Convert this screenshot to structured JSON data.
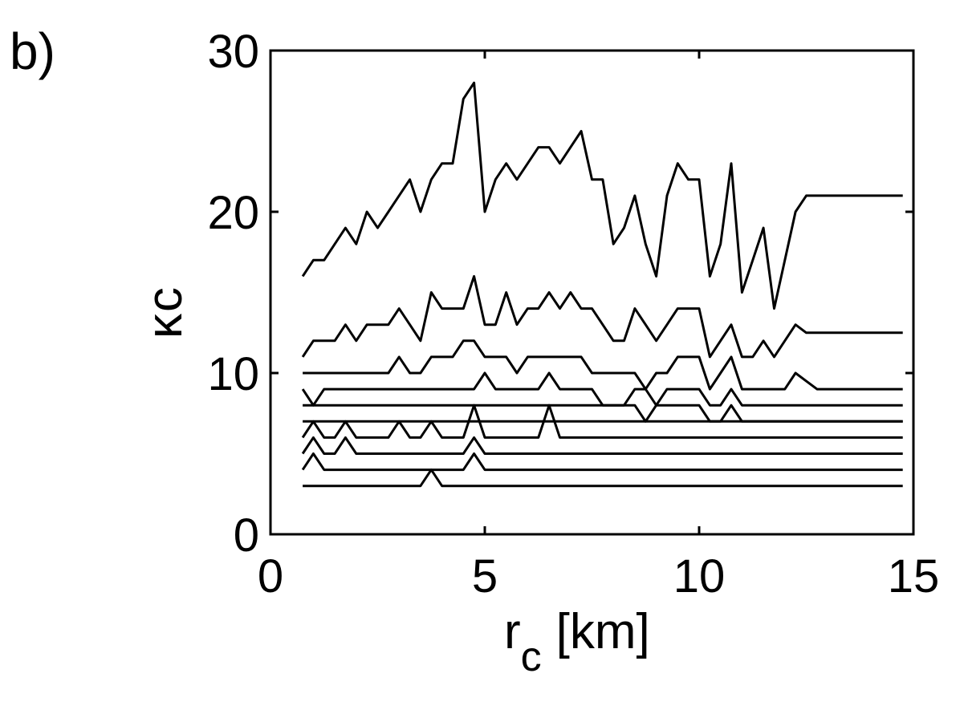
{
  "panel_label": "b)",
  "chart_data": {
    "type": "line",
    "title": "",
    "xlabel_main": "r",
    "xlabel_sub": "c",
    "xlabel_unit": "[km]",
    "ylabel_main": "κ",
    "ylabel_sub": "c",
    "xlim": [
      0,
      15
    ],
    "ylim": [
      0,
      30
    ],
    "xticks": [
      0,
      5,
      10,
      15
    ],
    "yticks": [
      0,
      10,
      20,
      30
    ],
    "grid": false,
    "line_color": "#000000",
    "x": [
      0.75,
      1.0,
      1.25,
      1.5,
      1.75,
      2.0,
      2.25,
      2.5,
      2.75,
      3.0,
      3.25,
      3.5,
      3.75,
      4.0,
      4.25,
      4.5,
      4.75,
      5.0,
      5.25,
      5.5,
      5.75,
      6.0,
      6.25,
      6.5,
      6.75,
      7.0,
      7.25,
      7.5,
      7.75,
      8.0,
      8.25,
      8.5,
      8.75,
      9.0,
      9.25,
      9.5,
      9.75,
      10.0,
      10.25,
      10.5,
      10.75,
      11.0,
      11.25,
      11.5,
      11.75,
      12.0,
      12.25,
      12.5,
      12.75,
      13.0,
      13.25,
      13.5,
      13.75,
      14.0,
      14.25,
      14.5,
      14.75
    ],
    "series": [
      {
        "values": [
          16,
          17,
          17,
          18,
          19,
          18,
          20,
          19,
          20,
          21,
          22,
          20,
          22,
          23,
          23,
          27,
          28,
          20,
          22,
          23,
          22,
          23,
          24,
          24,
          23,
          24,
          25,
          22,
          22,
          18,
          19,
          21,
          18,
          16,
          21,
          23,
          22,
          22,
          16,
          18,
          23,
          15,
          17,
          19,
          14,
          17,
          20,
          21,
          21,
          21,
          21,
          21,
          21,
          21,
          21,
          21,
          21
        ]
      },
      {
        "values": [
          11,
          12,
          12,
          12,
          13,
          12,
          13,
          13,
          13,
          14,
          13,
          12,
          15,
          14,
          14,
          14,
          16,
          13,
          13,
          15,
          13,
          14,
          14,
          15,
          14,
          15,
          14,
          14,
          13,
          12,
          12,
          14,
          13,
          12,
          13,
          14,
          14,
          14,
          11,
          12,
          13,
          11,
          11,
          12,
          11,
          12,
          13,
          12.5,
          12.5,
          12.5,
          12.5,
          12.5,
          12.5,
          12.5,
          12.5,
          12.5,
          12.5
        ]
      },
      {
        "values": [
          10,
          10,
          10,
          10,
          10,
          10,
          10,
          10,
          10,
          11,
          10,
          10,
          11,
          11,
          11,
          12,
          12,
          11,
          11,
          11,
          10,
          11,
          11,
          11,
          11,
          11,
          11,
          10,
          10,
          10,
          10,
          10,
          9,
          10,
          10,
          11,
          11,
          11,
          9,
          10,
          11,
          9,
          9,
          9,
          9,
          9,
          10,
          9.5,
          9,
          9,
          9,
          9,
          9,
          9,
          9,
          9,
          9
        ]
      },
      {
        "values": [
          9,
          8,
          9,
          9,
          9,
          9,
          9,
          9,
          9,
          9,
          9,
          9,
          9,
          9,
          9,
          9,
          9,
          10,
          9,
          9,
          9,
          9,
          9,
          10,
          9,
          9,
          9,
          9,
          8,
          8,
          8,
          9,
          9,
          8,
          9,
          9,
          9,
          9,
          8,
          8,
          9,
          8,
          8,
          8,
          8,
          8,
          8,
          8,
          8,
          8,
          8,
          8,
          8,
          8,
          8,
          8,
          8
        ]
      },
      {
        "values": [
          8,
          8,
          8,
          8,
          8,
          8,
          8,
          8,
          8,
          8,
          8,
          8,
          8,
          8,
          8,
          8,
          8,
          8,
          8,
          8,
          8,
          8,
          8,
          8,
          8,
          8,
          8,
          8,
          8,
          8,
          8,
          8,
          7,
          8,
          8,
          8,
          8,
          8,
          7,
          7,
          8,
          7,
          7,
          7,
          7,
          7,
          7,
          7,
          7,
          7,
          7,
          7,
          7,
          7,
          7,
          7,
          7
        ]
      },
      {
        "values": [
          7,
          7,
          7,
          7,
          7,
          7,
          7,
          7,
          7,
          7,
          7,
          7,
          7,
          7,
          7,
          7,
          7,
          7,
          7,
          7,
          7,
          7,
          7,
          7,
          7,
          7,
          7,
          7,
          7,
          7,
          7,
          7,
          7,
          7,
          7,
          7,
          7,
          7,
          7,
          7,
          7,
          7,
          7,
          7,
          7,
          7,
          7,
          7,
          7,
          7,
          7,
          7,
          7,
          7,
          7,
          7,
          7
        ]
      },
      {
        "values": [
          6,
          7,
          6,
          6,
          7,
          6,
          6,
          6,
          6,
          7,
          6,
          6,
          7,
          6,
          6,
          6,
          8,
          6,
          6,
          6,
          6,
          6,
          6,
          8,
          6,
          6,
          6,
          6,
          6,
          6,
          6,
          6,
          6,
          6,
          6,
          6,
          6,
          6,
          6,
          6,
          6,
          6,
          6,
          6,
          6,
          6,
          6,
          6,
          6,
          6,
          6,
          6,
          6,
          6,
          6,
          6,
          6
        ]
      },
      {
        "values": [
          5,
          6,
          5,
          5,
          6,
          5,
          5,
          5,
          5,
          5,
          5,
          5,
          5,
          5,
          5,
          5,
          6,
          5,
          5,
          5,
          5,
          5,
          5,
          5,
          5,
          5,
          5,
          5,
          5,
          5,
          5,
          5,
          5,
          5,
          5,
          5,
          5,
          5,
          5,
          5,
          5,
          5,
          5,
          5,
          5,
          5,
          5,
          5,
          5,
          5,
          5,
          5,
          5,
          5,
          5,
          5,
          5
        ]
      },
      {
        "values": [
          4,
          5,
          4,
          4,
          4,
          4,
          4,
          4,
          4,
          4,
          4,
          4,
          4,
          4,
          4,
          4,
          5,
          4,
          4,
          4,
          4,
          4,
          4,
          4,
          4,
          4,
          4,
          4,
          4,
          4,
          4,
          4,
          4,
          4,
          4,
          4,
          4,
          4,
          4,
          4,
          4,
          4,
          4,
          4,
          4,
          4,
          4,
          4,
          4,
          4,
          4,
          4,
          4,
          4,
          4,
          4,
          4
        ]
      },
      {
        "values": [
          3,
          3,
          3,
          3,
          3,
          3,
          3,
          3,
          3,
          3,
          3,
          3,
          4,
          3,
          3,
          3,
          3,
          3,
          3,
          3,
          3,
          3,
          3,
          3,
          3,
          3,
          3,
          3,
          3,
          3,
          3,
          3,
          3,
          3,
          3,
          3,
          3,
          3,
          3,
          3,
          3,
          3,
          3,
          3,
          3,
          3,
          3,
          3,
          3,
          3,
          3,
          3,
          3,
          3,
          3,
          3,
          3
        ]
      }
    ]
  }
}
